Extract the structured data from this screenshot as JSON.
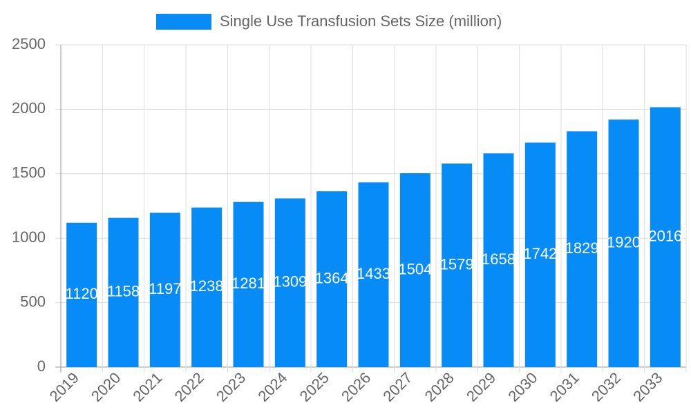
{
  "chart_data": {
    "type": "bar",
    "series": [
      {
        "name": "Single Use Transfusion Sets Size (million)",
        "color": "#068bf7",
        "values": [
          1120,
          1158,
          1197,
          1238,
          1281,
          1309,
          1364,
          1433,
          1504,
          1579,
          1658,
          1742,
          1829,
          1920,
          2016
        ]
      }
    ],
    "categories": [
      "2019",
      "2020",
      "2021",
      "2022",
      "2023",
      "2024",
      "2025",
      "2026",
      "2027",
      "2028",
      "2029",
      "2030",
      "2031",
      "2032",
      "2033"
    ],
    "ylim": [
      0,
      2500
    ],
    "yticks": [
      0,
      500,
      1000,
      1500,
      2000,
      2500
    ],
    "grid": true
  }
}
